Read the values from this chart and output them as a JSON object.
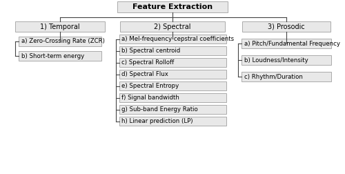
{
  "title": "Feature Extraction",
  "categories": [
    "1) Temporal",
    "2) Spectral",
    "3) Prosodic"
  ],
  "temporal_items": [
    "a) Zero-Crossing Rate (ZCR)",
    "b) Short-term energy"
  ],
  "spectral_items": [
    "a) Mel-frequency cepstral coefficients",
    "b) Spectral centroid",
    "c) Spectral Rolloff",
    "d) Spectral Flux",
    "e) Spectral Entropy",
    "f) Signal bandwidth",
    "g) Sub-band Energy Ratio",
    "h) Linear prediction (LP)"
  ],
  "prosodic_items": [
    "a) Pitch/Fundamental Frequency",
    "b) Loudness/Intensity",
    "c) Rhythm/Duration"
  ],
  "box_fill": "#e8e8e8",
  "box_edge": "#aaaaaa",
  "bg_color": "#ffffff",
  "line_color": "#444444",
  "title_fontsize": 8.0,
  "cat_fontsize": 7.0,
  "item_fontsize": 6.2,
  "title_bold": true,
  "cat_bold": false
}
